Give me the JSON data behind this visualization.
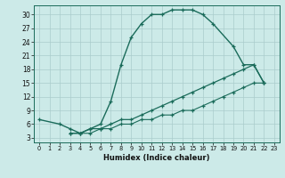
{
  "xlabel": "Humidex (Indice chaleur)",
  "bg_color": "#cceae8",
  "grid_color": "#aacccc",
  "line_color": "#1a6b5a",
  "xlim": [
    -0.5,
    23.5
  ],
  "ylim": [
    2,
    32
  ],
  "xticks": [
    0,
    1,
    2,
    3,
    4,
    5,
    6,
    7,
    8,
    9,
    10,
    11,
    12,
    13,
    14,
    15,
    16,
    17,
    18,
    19,
    20,
    21,
    22,
    23
  ],
  "yticks": [
    3,
    6,
    9,
    12,
    15,
    18,
    21,
    24,
    27,
    30
  ],
  "curve1_x": [
    0,
    2,
    3,
    4,
    5,
    6,
    7,
    8,
    9,
    10,
    11,
    12,
    13,
    14,
    15,
    16,
    17,
    19,
    20,
    21,
    22
  ],
  "curve1_y": [
    7,
    6,
    5,
    4,
    5,
    6,
    11,
    19,
    25,
    28,
    30,
    30,
    31,
    31,
    31,
    30,
    28,
    23,
    19,
    19,
    15
  ],
  "curve2_x": [
    3,
    4,
    5,
    6,
    7,
    8,
    9,
    10,
    11,
    12,
    13,
    14,
    15,
    16,
    17,
    18,
    19,
    20,
    21,
    22
  ],
  "curve2_y": [
    4,
    4,
    5,
    5,
    6,
    7,
    7,
    8,
    9,
    10,
    11,
    12,
    13,
    14,
    15,
    16,
    17,
    18,
    19,
    15
  ],
  "curve3_x": [
    3,
    4,
    5,
    6,
    7,
    8,
    9,
    10,
    11,
    12,
    13,
    14,
    15,
    16,
    17,
    18,
    19,
    20,
    21,
    22
  ],
  "curve3_y": [
    4,
    4,
    4,
    5,
    5,
    6,
    6,
    7,
    7,
    8,
    8,
    9,
    9,
    10,
    11,
    12,
    13,
    14,
    15,
    15
  ]
}
